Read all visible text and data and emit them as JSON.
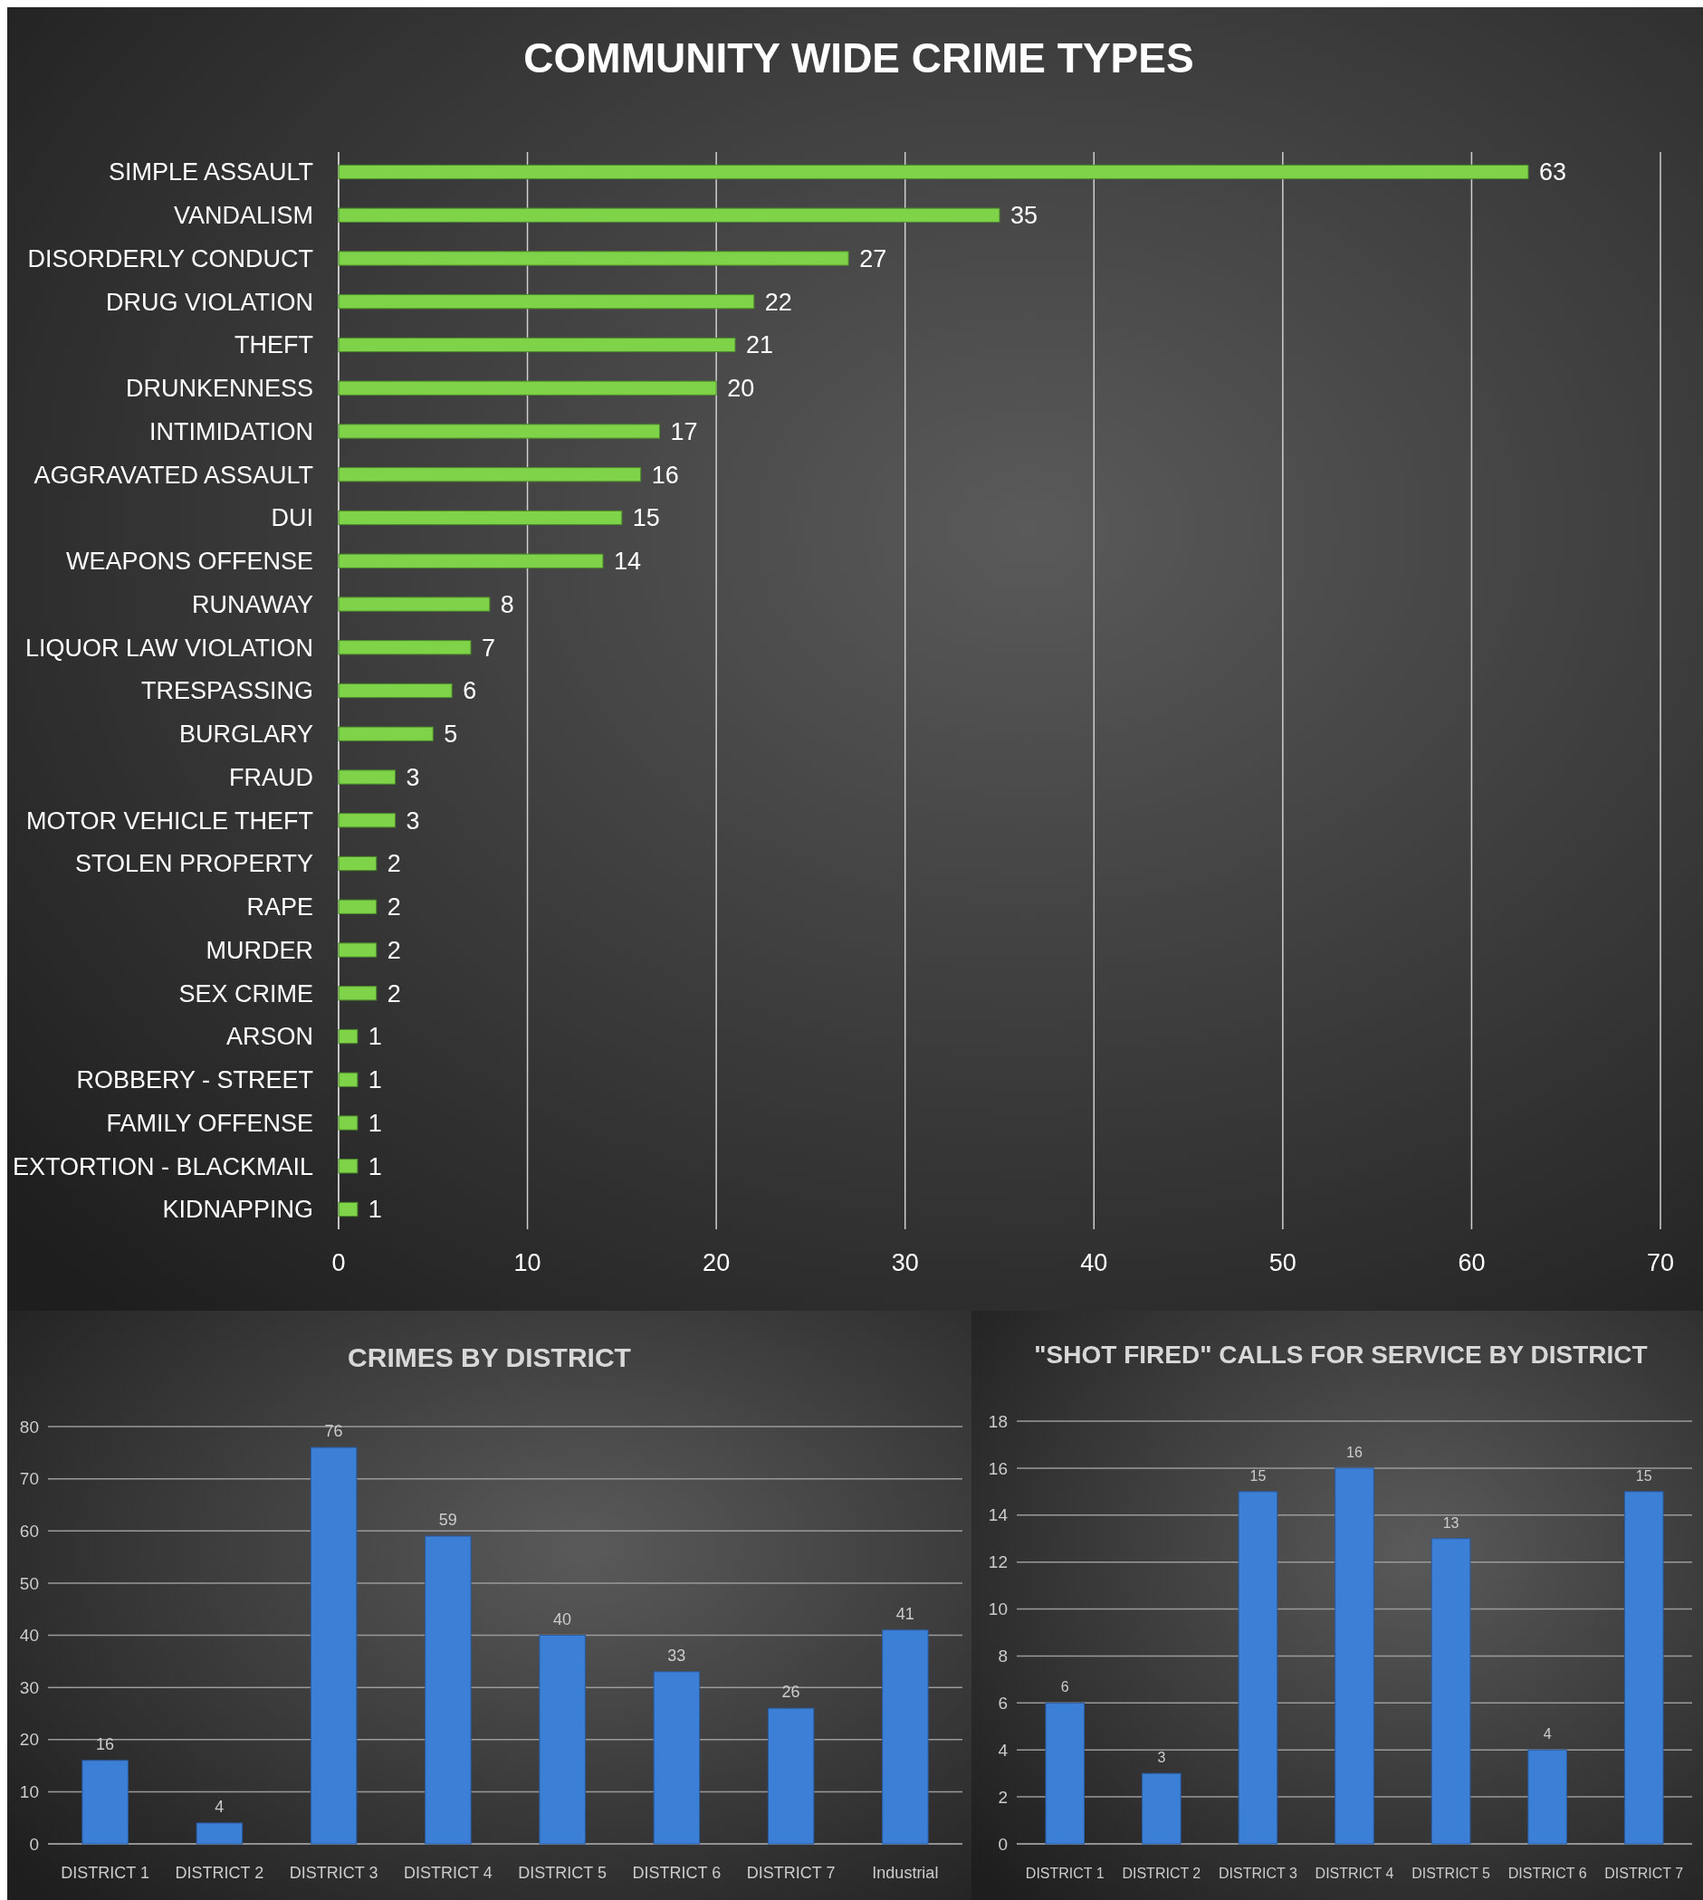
{
  "chart_data": [
    {
      "type": "bar",
      "title": "COMMUNITY WIDE CRIME TYPES",
      "orientation": "horizontal",
      "categories": [
        "SIMPLE ASSAULT",
        "VANDALISM",
        "DISORDERLY CONDUCT",
        "DRUG VIOLATION",
        "THEFT",
        "DRUNKENNESS",
        "INTIMIDATION",
        "AGGRAVATED ASSAULT",
        "DUI",
        "WEAPONS OFFENSE",
        "RUNAWAY",
        "LIQUOR LAW VIOLATION",
        "TRESPASSING",
        "BURGLARY",
        "FRAUD",
        "MOTOR VEHICLE THEFT",
        "STOLEN PROPERTY",
        "RAPE",
        "MURDER",
        "SEX CRIME",
        "ARSON",
        "ROBBERY - STREET",
        "FAMILY OFFENSE",
        "EXTORTION - BLACKMAIL",
        "KIDNAPPING"
      ],
      "values": [
        63,
        35,
        27,
        22,
        21,
        20,
        17,
        16,
        15,
        14,
        8,
        7,
        6,
        5,
        3,
        3,
        2,
        2,
        2,
        2,
        1,
        1,
        1,
        1,
        1
      ],
      "color": "#7ed348",
      "xlim": [
        0,
        70
      ],
      "xticks": [
        0,
        10,
        20,
        30,
        40,
        50,
        60,
        70
      ],
      "grid": "x",
      "data_labels": true,
      "legend": false
    },
    {
      "type": "bar",
      "title": "CRIMES BY DISTRICT",
      "categories": [
        "DISTRICT 1",
        "DISTRICT 2",
        "DISTRICT 3",
        "DISTRICT 4",
        "DISTRICT 5",
        "DISTRICT 6",
        "DISTRICT 7",
        "Industrial"
      ],
      "values": [
        16,
        4,
        76,
        59,
        40,
        33,
        26,
        41
      ],
      "color": "#3b7fd6",
      "ylim": [
        0,
        80
      ],
      "yticks": [
        0,
        10,
        20,
        30,
        40,
        50,
        60,
        70,
        80
      ],
      "grid": "y",
      "data_labels": true,
      "legend": false
    },
    {
      "type": "bar",
      "title": "\"SHOT FIRED\" CALLS FOR SERVICE BY DISTRICT",
      "categories": [
        "DISTRICT 1",
        "DISTRICT 2",
        "DISTRICT 3",
        "DISTRICT 4",
        "DISTRICT 5",
        "DISTRICT 6",
        "DISTRICT 7"
      ],
      "values": [
        6,
        3,
        15,
        16,
        13,
        4,
        15
      ],
      "color": "#3b7fd6",
      "ylim": [
        0,
        18
      ],
      "yticks": [
        0,
        2,
        4,
        6,
        8,
        10,
        12,
        14,
        16,
        18
      ],
      "grid": "y",
      "data_labels": true,
      "legend": false
    }
  ]
}
